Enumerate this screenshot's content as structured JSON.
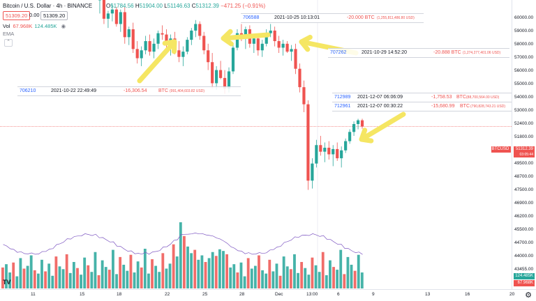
{
  "header": {
    "symbol": "Bitcoin / U.S. Dollar · 4h · BINANCE",
    "ohlc": {
      "o_label": "O",
      "o": "51784.56",
      "h_label": "H",
      "h": "51904.00",
      "l_label": "L",
      "l": "51146.63",
      "c_label": "C",
      "c": "51312.39",
      "chg": "−471.25 (−0.91%)"
    },
    "bid": "51309.20",
    "spread": "0.00",
    "ask": "51309.20"
  },
  "volume_legend": {
    "label": "Vol",
    "v1": "67.968K",
    "v2": "124.485K"
  },
  "ema_label": "EMA",
  "trades": [
    {
      "id": "706588",
      "time": "2021-10-25 10:13:01",
      "amount": "-20.000 BTC",
      "usd": "(1,255,811,486.80 USD)"
    },
    {
      "id": "707262",
      "time": "2021-10-29 14:52:20",
      "amount": "-20.888 BTC",
      "usd": "(1,274,277,401.06 USD)"
    },
    {
      "id": "706210",
      "time": "2021-10-22 22:49:49",
      "amount": "-16,306.54",
      "amount2": "BTC",
      "usd": "(991,404,603.82 USD)"
    },
    {
      "id": "712989",
      "time": "2021-12-07 06:06:09",
      "amount": "-1,758.53",
      "amount2": "BTC",
      "usd": "(88,700,564.00 USD)"
    },
    {
      "id": "712961",
      "time": "2021-12-07 00:30:22",
      "amount": "-15,680.99",
      "amount2": "BTC",
      "usd": "(790,828,743.21 USD)"
    }
  ],
  "price_axis": {
    "ticks": [
      "60000.00",
      "59000.00",
      "58000.00",
      "57000.00",
      "56000.00",
      "55000.00",
      "54000.00",
      "53000.00",
      "52400.00",
      "51800.00",
      "50200.00",
      "49500.00",
      "48700.00",
      "47500.00",
      "46900.00",
      "46200.00",
      "45500.00",
      "44700.00",
      "44000.00",
      "43455.00"
    ],
    "current_symbol": "BTCUSD",
    "current_price": "51312.39",
    "countdown": "03:05:44",
    "vol_badge_1": "124.485K",
    "vol_badge_2": "67.968K"
  },
  "time_axis": {
    "ticks": [
      "11",
      "15",
      "18",
      "22",
      "25",
      "28",
      "Dec",
      "13:00",
      "6",
      "9",
      "13",
      "16",
      "20"
    ]
  },
  "colors": {
    "up": "#26a69a",
    "down": "#ef5350",
    "arrow": "#f5e663",
    "ema": "#7e57c2"
  },
  "chart_data": {
    "type": "candlestick",
    "title": "",
    "timeframe": "4h",
    "ylim": [
      43455,
      60500
    ],
    "candles": [
      [
        60900,
        61600,
        59900,
        61200
      ],
      [
        61200,
        61500,
        59100,
        59500
      ],
      [
        59500,
        60100,
        58800,
        59900
      ],
      [
        59900,
        60600,
        59300,
        60200
      ],
      [
        60200,
        60400,
        58900,
        59100
      ],
      [
        59100,
        60200,
        58500,
        60000
      ],
      [
        60000,
        60400,
        57600,
        58100
      ],
      [
        58100,
        58900,
        57500,
        58700
      ],
      [
        58700,
        59200,
        56900,
        57200
      ],
      [
        57200,
        57800,
        56100,
        56500
      ],
      [
        56500,
        57400,
        55900,
        57100
      ],
      [
        57100,
        58200,
        56800,
        57800
      ],
      [
        57800,
        58300,
        56700,
        57000
      ],
      [
        57000,
        58000,
        56500,
        57600
      ],
      [
        57600,
        58600,
        57200,
        58400
      ],
      [
        58400,
        59000,
        57900,
        58300
      ],
      [
        58300,
        58700,
        57300,
        57600
      ],
      [
        57600,
        58300,
        56700,
        58000
      ],
      [
        58000,
        58500,
        56800,
        57100
      ],
      [
        57100,
        57800,
        56200,
        56600
      ],
      [
        56600,
        57400,
        55900,
        57000
      ],
      [
        57000,
        58100,
        56800,
        57900
      ],
      [
        57900,
        58800,
        57500,
        58600
      ],
      [
        58600,
        59400,
        58100,
        59100
      ],
      [
        59100,
        59300,
        57900,
        58200
      ],
      [
        58200,
        58500,
        56800,
        57100
      ],
      [
        57100,
        57600,
        55600,
        56200
      ],
      [
        56200,
        56900,
        54200,
        54600
      ],
      [
        54600,
        55900,
        54100,
        55600
      ],
      [
        55600,
        56300,
        54900,
        55000
      ],
      [
        55000,
        55600,
        53800,
        54200
      ],
      [
        54200,
        55800,
        53900,
        55500
      ],
      [
        55500,
        57600,
        55300,
        57300
      ],
      [
        57300,
        58700,
        57100,
        58400
      ],
      [
        58400,
        59100,
        57800,
        58100
      ],
      [
        58100,
        58900,
        57200,
        58700
      ],
      [
        58700,
        59000,
        57300,
        57600
      ],
      [
        57600,
        58300,
        56900,
        58000
      ],
      [
        58000,
        58200,
        56700,
        57100
      ],
      [
        57100,
        57900,
        56600,
        57600
      ],
      [
        57600,
        58700,
        57400,
        58400
      ],
      [
        58400,
        59100,
        58100,
        58600
      ],
      [
        58600,
        58900,
        57400,
        57800
      ],
      [
        57800,
        58200,
        56900,
        57300
      ],
      [
        57300,
        57900,
        56700,
        57600
      ],
      [
        57600,
        57800,
        56900,
        57000
      ],
      [
        57000,
        57500,
        56300,
        57200
      ],
      [
        57200,
        57600,
        55300,
        55700
      ],
      [
        55700,
        56100,
        53900,
        54300
      ],
      [
        54300,
        54800,
        52400,
        53000
      ],
      [
        53000,
        53300,
        46500,
        47200
      ],
      [
        47200,
        48900,
        46600,
        48500
      ],
      [
        48500,
        50300,
        48200,
        49900
      ],
      [
        49900,
        50600,
        49100,
        49400
      ],
      [
        49400,
        50100,
        48600,
        49700
      ],
      [
        49700,
        50200,
        48800,
        49200
      ],
      [
        49200,
        49900,
        48300,
        49600
      ],
      [
        49600,
        50100,
        48700,
        48900
      ],
      [
        48900,
        49800,
        48200,
        49500
      ],
      [
        49500,
        50400,
        49300,
        50200
      ],
      [
        50200,
        51100,
        50000,
        50900
      ],
      [
        50900,
        51700,
        50600,
        51500
      ],
      [
        51500,
        51900,
        51100,
        51784
      ],
      [
        51784,
        51904,
        51146,
        51312
      ]
    ],
    "volume_k": [
      "38",
      "44",
      "29",
      "47",
      "22",
      "55",
      "36",
      "41",
      "60",
      "33",
      "27",
      "52",
      "31",
      "45",
      "23",
      "58",
      "40",
      "35",
      "62",
      "28",
      "48",
      "37",
      "25",
      "56",
      "42",
      "30",
      "66",
      "24",
      "51",
      "39",
      "34",
      "70",
      "26",
      "57",
      "43",
      "32",
      "61",
      "29",
      "49",
      "38",
      "72",
      "27",
      "53",
      "41",
      "30",
      "64",
      "36",
      "45",
      "80",
      "58",
      "120",
      "95",
      "76",
      "64",
      "70",
      "52",
      "60",
      "48",
      "55",
      "66",
      "59",
      "71",
      "68",
      "62"
    ]
  }
}
